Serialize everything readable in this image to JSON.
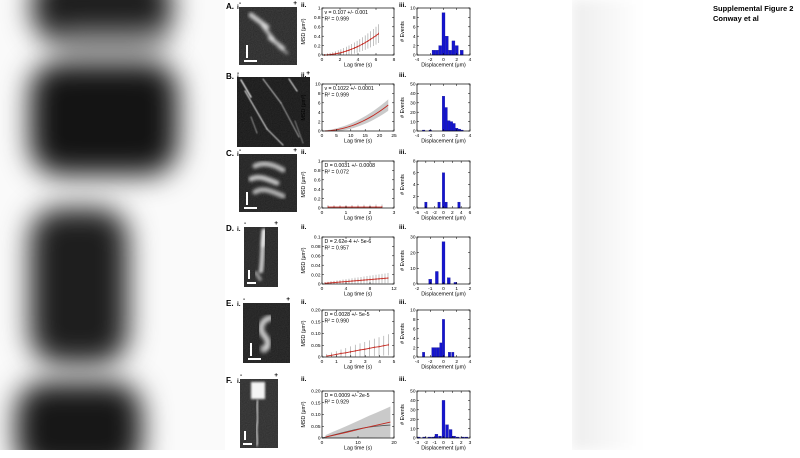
{
  "figure_title": {
    "line1": "Supplemental Figure 2",
    "line2": "Conway et al"
  },
  "colors": {
    "msd_line": "#c22820",
    "error_bar": "#9a9a9a",
    "band": "#c4c4c4",
    "second_line": "#555555",
    "hist_bar": "#1515cf",
    "hist_bar_edge": "#0b0b8e",
    "axis": "#000000"
  },
  "panels": [
    {
      "label": "A.",
      "kymo_label": "i.",
      "msd_label": "ii.",
      "hist_label": "iii.",
      "minus": "-",
      "plus": "+"
    },
    {
      "label": "B.",
      "kymo_label": "i.",
      "msd_label": "ii.",
      "hist_label": "iii.",
      "minus": "-",
      "plus": "+"
    },
    {
      "label": "C.",
      "kymo_label": "i.",
      "msd_label": "ii.",
      "hist_label": "iii.",
      "minus": "-",
      "plus": "+"
    },
    {
      "label": "D.",
      "kymo_label": "i.",
      "msd_label": "ii.",
      "hist_label": "iii.",
      "minus": "-",
      "plus": "+"
    },
    {
      "label": "E.",
      "kymo_label": "i.",
      "msd_label": "ii.",
      "hist_label": "iii.",
      "minus": "-",
      "plus": "+"
    },
    {
      "label": "F.",
      "kymo_label": "i.",
      "msd_label": "ii.",
      "hist_label": "iii.",
      "minus": "-",
      "plus": "+"
    }
  ],
  "chart_data": [
    {
      "panel": "A",
      "plot": "msd",
      "type": "line",
      "markers": true,
      "annotations": [
        "v = 0.107 +/- 0.001",
        "R² = 0.999"
      ],
      "xlabel": "Lag time (s)",
      "ylabel": "MSD (μm²)",
      "xlim": [
        0,
        8
      ],
      "ylim": [
        0,
        1
      ],
      "xticks": [
        0,
        2,
        4,
        6,
        8
      ],
      "xtick_labels": [
        "0",
        "2",
        "4",
        "6",
        "8"
      ],
      "yticks": [
        0,
        0.2,
        0.4,
        0.6,
        0.8,
        1
      ],
      "ytick_labels": [
        "0",
        "0.2",
        "0.4",
        "0.6",
        "0.8",
        "1"
      ],
      "points": [
        [
          0.3,
          0.001,
          0.019
        ],
        [
          0.6,
          0.004,
          0.028
        ],
        [
          0.9,
          0.009,
          0.037
        ],
        [
          1.2,
          0.016,
          0.046
        ],
        [
          1.5,
          0.026,
          0.055
        ],
        [
          1.8,
          0.037,
          0.064
        ],
        [
          2.1,
          0.05,
          0.073
        ],
        [
          2.4,
          0.066,
          0.082
        ],
        [
          2.7,
          0.084,
          0.091
        ],
        [
          3.0,
          0.103,
          0.1
        ],
        [
          3.3,
          0.125,
          0.109
        ],
        [
          3.6,
          0.148,
          0.118
        ],
        [
          3.9,
          0.174,
          0.127
        ],
        [
          4.2,
          0.202,
          0.136
        ],
        [
          4.5,
          0.232,
          0.145
        ],
        [
          4.8,
          0.264,
          0.154
        ],
        [
          5.1,
          0.298,
          0.163
        ],
        [
          5.4,
          0.334,
          0.172
        ],
        [
          5.7,
          0.372,
          0.181
        ],
        [
          6.0,
          0.412,
          0.19
        ],
        [
          6.3,
          0.454,
          0.199
        ]
      ]
    },
    {
      "panel": "A",
      "plot": "hist",
      "type": "bar",
      "xlabel": "Displacement (μm)",
      "ylabel": "# Events",
      "xlim": [
        -4,
        4
      ],
      "ylim": [
        0,
        10
      ],
      "xticks": [
        -4,
        -2,
        0,
        2,
        4
      ],
      "xtick_labels": [
        "-4",
        "-2",
        "0",
        "2",
        "4"
      ],
      "yticks": [
        0,
        2,
        4,
        6,
        8,
        10
      ],
      "ytick_labels": [
        "0",
        "2",
        "4",
        "6",
        "8",
        "10"
      ],
      "bar_width": 0.45,
      "bars": [
        [
          -1.5,
          1
        ],
        [
          -1,
          1
        ],
        [
          -0.5,
          2
        ],
        [
          0,
          9
        ],
        [
          0.5,
          4
        ],
        [
          1,
          1
        ],
        [
          1.5,
          3
        ],
        [
          2,
          2
        ],
        [
          2.75,
          1
        ]
      ]
    },
    {
      "panel": "B",
      "plot": "msd",
      "type": "line",
      "band": true,
      "annotations": [
        "v = 0.1022 +/- 0.0001",
        "R² = 0.999"
      ],
      "xlabel": "Lag time (s)",
      "ylabel": "MSD (μm²)",
      "xlim": [
        0,
        25
      ],
      "ylim": [
        0,
        10
      ],
      "xticks": [
        0,
        5,
        10,
        15,
        20,
        25
      ],
      "xtick_labels": [
        "0",
        "5",
        "10",
        "15",
        "20",
        "25"
      ],
      "yticks": [
        0,
        2,
        4,
        6,
        8,
        10
      ],
      "ytick_labels": [
        "0",
        "2",
        "4",
        "6",
        "8",
        "10"
      ],
      "points": [
        [
          1,
          0.01,
          0.11
        ],
        [
          2,
          0.04,
          0.16
        ],
        [
          3,
          0.09,
          0.21
        ],
        [
          4,
          0.17,
          0.26
        ],
        [
          5,
          0.26,
          0.31
        ],
        [
          6,
          0.38,
          0.36
        ],
        [
          7,
          0.51,
          0.41
        ],
        [
          8,
          0.67,
          0.46
        ],
        [
          9,
          0.85,
          0.51
        ],
        [
          10,
          1.04,
          0.56
        ],
        [
          11,
          1.26,
          0.61
        ],
        [
          12,
          1.5,
          0.66
        ],
        [
          13,
          1.77,
          0.71
        ],
        [
          14,
          2.05,
          0.76
        ],
        [
          15,
          2.35,
          0.81
        ],
        [
          16,
          2.67,
          0.86
        ],
        [
          17,
          3.02,
          0.91
        ],
        [
          18,
          3.38,
          0.96
        ],
        [
          19,
          3.77,
          1.01
        ],
        [
          20,
          4.18,
          1.06
        ],
        [
          21,
          4.6,
          1.11
        ],
        [
          22,
          5.05,
          1.16
        ],
        [
          23,
          5.53,
          1.21
        ]
      ]
    },
    {
      "panel": "B",
      "plot": "hist",
      "type": "bar",
      "xlabel": "Displacement (μm)",
      "ylabel": "# Events",
      "xlim": [
        -4,
        4
      ],
      "ylim": [
        0,
        50
      ],
      "xticks": [
        -4,
        -2,
        0,
        2,
        4
      ],
      "xtick_labels": [
        "-4",
        "-2",
        "0",
        "2",
        "4"
      ],
      "yticks": [
        0,
        10,
        20,
        30,
        40,
        50
      ],
      "ytick_labels": [
        "0",
        "10",
        "20",
        "30",
        "40",
        "50"
      ],
      "bar_width": 0.38,
      "bars": [
        [
          -3,
          1
        ],
        [
          -2,
          1
        ],
        [
          0,
          37
        ],
        [
          0.4,
          25
        ],
        [
          0.8,
          11
        ],
        [
          1.2,
          10
        ],
        [
          1.6,
          8
        ],
        [
          2,
          3
        ],
        [
          2.4,
          2
        ],
        [
          2.8,
          1
        ]
      ]
    },
    {
      "panel": "C",
      "plot": "msd",
      "type": "line",
      "markers": true,
      "annotations": [
        "D = 0.0031 +/- 0.0008",
        "R² = 0.072"
      ],
      "xlabel": "Lag time (s)",
      "ylabel": "MSD (μm²)",
      "xlim": [
        0,
        3
      ],
      "ylim": [
        0,
        1
      ],
      "xticks": [
        0,
        1,
        2,
        3
      ],
      "xtick_labels": [
        "0",
        "1",
        "2",
        "3"
      ],
      "yticks": [
        0,
        0.2,
        0.4,
        0.6,
        0.8,
        1
      ],
      "ytick_labels": [
        "0",
        "0.2",
        "0.4",
        "0.6",
        "0.8",
        "1"
      ],
      "points": [
        [
          0.25,
          0.02,
          0.04
        ],
        [
          0.5,
          0.02,
          0.04
        ],
        [
          0.75,
          0.02,
          0.04
        ],
        [
          1.0,
          0.02,
          0.045
        ],
        [
          1.25,
          0.02,
          0.045
        ],
        [
          1.5,
          0.02,
          0.05
        ],
        [
          1.75,
          0.02,
          0.05
        ],
        [
          2.0,
          0.02,
          0.05
        ],
        [
          2.25,
          0.02,
          0.055
        ],
        [
          2.5,
          0.02,
          0.055
        ]
      ]
    },
    {
      "panel": "C",
      "plot": "hist",
      "type": "bar",
      "xlabel": "Displacement (μm)",
      "ylabel": "# Events",
      "xlim": [
        -6,
        6
      ],
      "ylim": [
        0,
        8
      ],
      "xticks": [
        -6,
        -4,
        -2,
        0,
        2,
        4,
        6
      ],
      "xtick_labels": [
        "-6",
        "-4",
        "-2",
        "0",
        "2",
        "4",
        "6"
      ],
      "yticks": [
        0,
        2,
        4,
        6,
        8
      ],
      "ytick_labels": [
        "0",
        "2",
        "4",
        "6",
        "8"
      ],
      "bar_width": 0.55,
      "bars": [
        [
          -4,
          1
        ],
        [
          -1,
          1
        ],
        [
          0,
          6
        ],
        [
          0.6,
          1
        ],
        [
          3.5,
          1
        ]
      ]
    },
    {
      "panel": "D",
      "plot": "msd",
      "type": "line",
      "markers": true,
      "annotations": [
        "D = 2.62e-4 +/- 5e-6",
        "R² = 0.957"
      ],
      "xlabel": "Lag time (s)",
      "ylabel": "MSD (μm²)",
      "xlim": [
        0,
        12
      ],
      "ylim": [
        0,
        0.1
      ],
      "xticks": [
        0,
        4,
        8,
        12
      ],
      "xtick_labels": [
        "0",
        "4",
        "8",
        "12"
      ],
      "yticks": [
        0,
        0.02,
        0.04,
        0.06,
        0.08,
        0.1
      ],
      "ytick_labels": [
        "0",
        "0.02",
        "0.04",
        "0.06",
        "0.08",
        "0.1"
      ],
      "points": [
        [
          0.5,
          0.0015,
          0.0024
        ],
        [
          1,
          0.0021,
          0.0028
        ],
        [
          1.5,
          0.0026,
          0.0032
        ],
        [
          2,
          0.0031,
          0.0036
        ],
        [
          2.5,
          0.0036,
          0.004
        ],
        [
          3,
          0.0042,
          0.0044
        ],
        [
          3.5,
          0.0047,
          0.0048
        ],
        [
          4,
          0.0052,
          0.0052
        ],
        [
          4.5,
          0.0057,
          0.0056
        ],
        [
          5,
          0.0063,
          0.006
        ],
        [
          5.5,
          0.0068,
          0.0064
        ],
        [
          6,
          0.0073,
          0.0068
        ],
        [
          6.5,
          0.0078,
          0.0072
        ],
        [
          7,
          0.0084,
          0.0076
        ],
        [
          7.5,
          0.0089,
          0.008
        ],
        [
          8,
          0.0094,
          0.0084
        ],
        [
          8.5,
          0.0099,
          0.0088
        ],
        [
          9,
          0.0105,
          0.0092
        ],
        [
          9.5,
          0.011,
          0.0096
        ],
        [
          10,
          0.0115,
          0.01
        ],
        [
          10.5,
          0.012,
          0.0104
        ],
        [
          11,
          0.0126,
          0.0108
        ]
      ]
    },
    {
      "panel": "D",
      "plot": "hist",
      "type": "bar",
      "xlabel": "Displacement (μm)",
      "ylabel": "# Events",
      "xlim": [
        -2,
        2
      ],
      "ylim": [
        0,
        30
      ],
      "xticks": [
        -2,
        -1,
        0,
        1,
        2
      ],
      "xtick_labels": [
        "-2",
        "-1",
        "0",
        "1",
        "2"
      ],
      "yticks": [
        0,
        10,
        20,
        30
      ],
      "ytick_labels": [
        "0",
        "10",
        "20",
        "30"
      ],
      "bar_width": 0.22,
      "bars": [
        [
          -1,
          3
        ],
        [
          -0.5,
          8
        ],
        [
          0,
          27
        ],
        [
          0.4,
          4
        ],
        [
          0.9,
          1
        ]
      ]
    },
    {
      "panel": "E",
      "plot": "msd",
      "type": "line",
      "markers": true,
      "annotations": [
        "D = 0.0028 +/- 5e-5",
        "R² = 0.990"
      ],
      "xlabel": "Lag time (s)",
      "ylabel": "MSD (μm²)",
      "xlim": [
        0,
        5
      ],
      "ylim": [
        0,
        0.2
      ],
      "xticks": [
        0,
        1,
        2,
        3,
        4,
        5
      ],
      "xtick_labels": [
        "0",
        "1",
        "2",
        "3",
        "4",
        "5"
      ],
      "yticks": [
        0,
        0.05,
        0.1,
        0.15,
        0.2
      ],
      "ytick_labels": [
        "0",
        "0.05",
        "0.10",
        "0.15",
        "0.20"
      ],
      "points": [
        [
          0.33,
          0.004,
          0.009
        ],
        [
          0.66,
          0.007,
          0.012
        ],
        [
          0.99,
          0.011,
          0.014
        ],
        [
          1.32,
          0.015,
          0.017
        ],
        [
          1.65,
          0.018,
          0.02
        ],
        [
          1.98,
          0.022,
          0.023
        ],
        [
          2.31,
          0.026,
          0.026
        ],
        [
          2.64,
          0.03,
          0.028
        ],
        [
          2.97,
          0.033,
          0.031
        ],
        [
          3.3,
          0.037,
          0.034
        ],
        [
          3.63,
          0.041,
          0.037
        ],
        [
          3.96,
          0.044,
          0.04
        ],
        [
          4.29,
          0.048,
          0.042
        ],
        [
          4.62,
          0.052,
          0.045
        ]
      ]
    },
    {
      "panel": "E",
      "plot": "hist",
      "type": "bar",
      "xlabel": "Displacement (μm)",
      "ylabel": "# Events",
      "xlim": [
        -4,
        4
      ],
      "ylim": [
        0,
        10
      ],
      "xticks": [
        -4,
        -2,
        0,
        2,
        4
      ],
      "xtick_labels": [
        "-4",
        "-2",
        "0",
        "2",
        "4"
      ],
      "yticks": [
        0,
        2,
        4,
        6,
        8,
        10
      ],
      "ytick_labels": [
        "0",
        "2",
        "4",
        "6",
        "8",
        "10"
      ],
      "bar_width": 0.36,
      "bars": [
        [
          -3,
          1
        ],
        [
          -1.6,
          2
        ],
        [
          -1.2,
          2
        ],
        [
          -0.8,
          2
        ],
        [
          -0.4,
          3
        ],
        [
          0,
          8
        ],
        [
          0.9,
          1
        ],
        [
          1.4,
          1
        ]
      ]
    },
    {
      "panel": "F",
      "plot": "msd",
      "type": "line",
      "band": true,
      "annotations": [
        "D = 0.0009 +/- 2e-5",
        "R² = 0.929"
      ],
      "xlabel": "Lag time (s)",
      "ylabel": "MSD (μm²)",
      "xlim": [
        0,
        20
      ],
      "ylim": [
        0,
        0.2
      ],
      "xticks": [
        0,
        10,
        20
      ],
      "xtick_labels": [
        "0",
        "10",
        "20"
      ],
      "yticks": [
        0,
        0.05,
        0.1,
        0.15,
        0.2
      ],
      "ytick_labels": [
        "0",
        "0.05",
        "0.10",
        "0.15",
        "0.20"
      ],
      "points": [
        [
          1,
          0.004,
          0.008
        ],
        [
          3,
          0.011,
          0.015
        ],
        [
          5,
          0.018,
          0.021
        ],
        [
          7,
          0.025,
          0.027
        ],
        [
          9,
          0.032,
          0.034
        ],
        [
          11,
          0.04,
          0.04
        ],
        [
          13,
          0.047,
          0.047
        ],
        [
          15,
          0.054,
          0.053
        ],
        [
          17,
          0.061,
          0.059
        ],
        [
          19,
          0.068,
          0.066
        ]
      ],
      "second_line": [
        [
          0,
          0
        ],
        [
          3,
          0.012
        ],
        [
          6,
          0.024
        ],
        [
          9,
          0.035
        ],
        [
          12,
          0.044
        ],
        [
          15,
          0.05
        ],
        [
          17,
          0.053
        ],
        [
          19,
          0.055
        ]
      ]
    },
    {
      "panel": "F",
      "plot": "hist",
      "type": "bar",
      "xlabel": "Displacement (μm)",
      "ylabel": "# Events",
      "xlim": [
        -3,
        3
      ],
      "ylim": [
        0,
        50
      ],
      "xticks": [
        -3,
        -2,
        -1,
        0,
        1,
        2,
        3
      ],
      "xtick_labels": [
        "-3",
        "-2",
        "-1",
        "0",
        "1",
        "2",
        "3"
      ],
      "yticks": [
        0,
        10,
        20,
        30,
        40,
        50
      ],
      "ytick_labels": [
        "0",
        "10",
        "20",
        "30",
        "40",
        "50"
      ],
      "bar_width": 0.33,
      "bars": [
        [
          -2.8,
          1
        ],
        [
          -2.2,
          1
        ],
        [
          -1.6,
          1
        ],
        [
          -1.2,
          1
        ],
        [
          -0.8,
          4
        ],
        [
          -0.4,
          2
        ],
        [
          0,
          40
        ],
        [
          0.4,
          14
        ],
        [
          0.8,
          9
        ],
        [
          1.2,
          2
        ],
        [
          1.6,
          1
        ],
        [
          2.2,
          1
        ],
        [
          2.6,
          1
        ]
      ]
    }
  ]
}
